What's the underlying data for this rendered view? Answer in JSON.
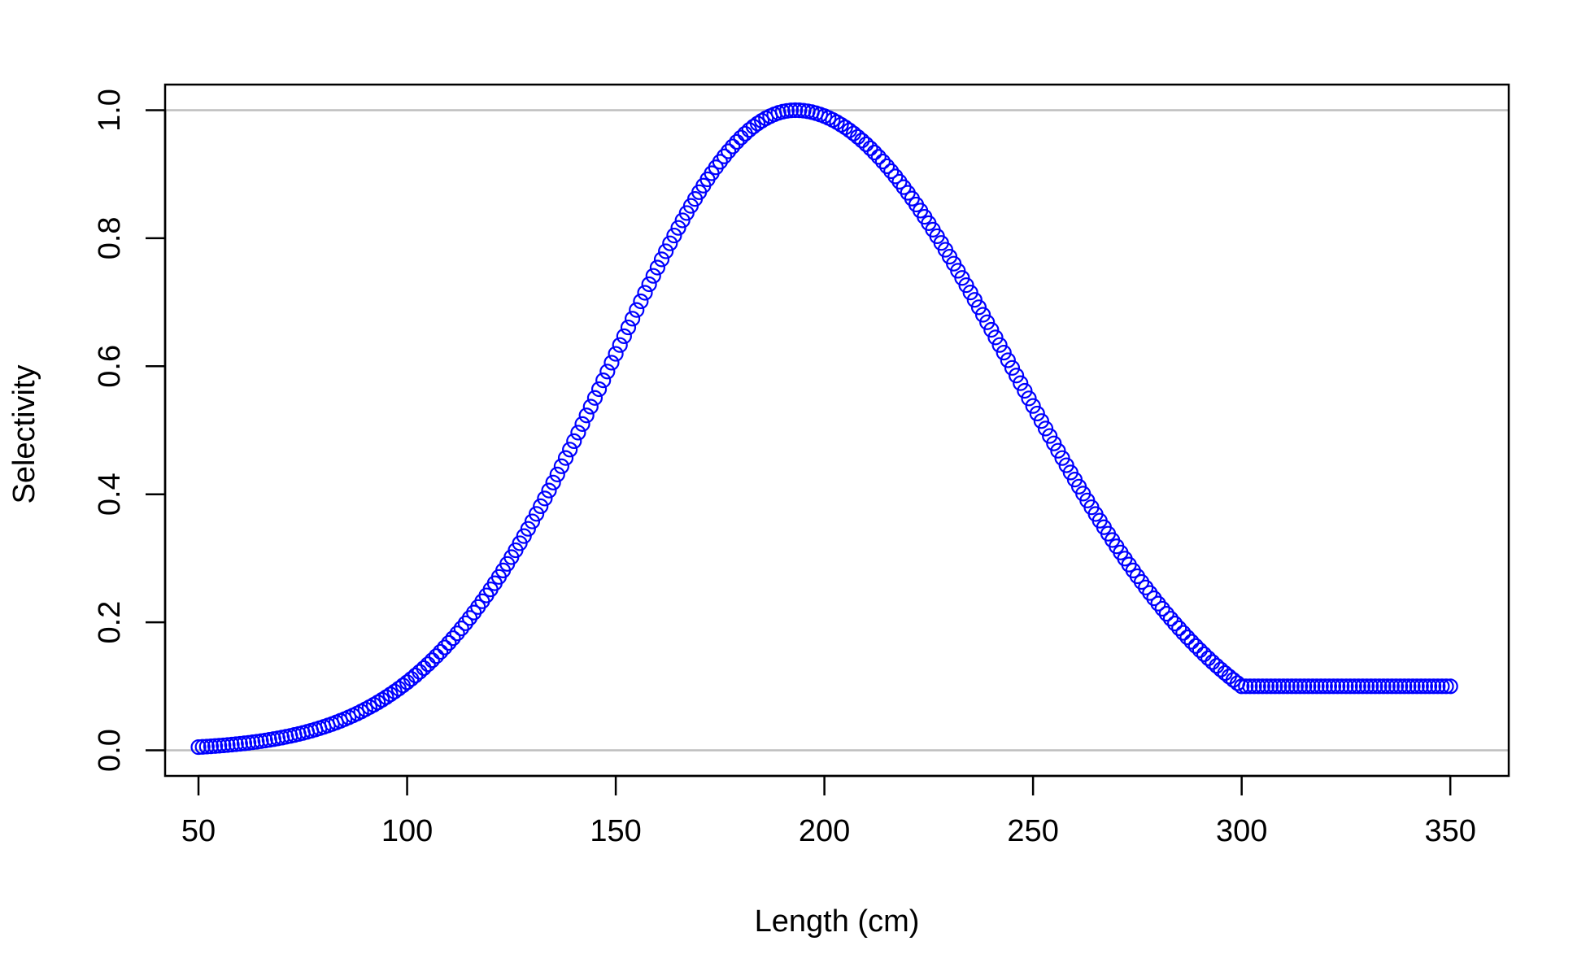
{
  "chart_data": {
    "type": "scatter",
    "title": "",
    "xlabel": "Length (cm)",
    "ylabel": "Selectivity",
    "xlim": [
      42,
      364
    ],
    "ylim": [
      -0.04,
      1.04
    ],
    "x_ticks": [
      "50",
      "100",
      "150",
      "200",
      "250",
      "300",
      "350"
    ],
    "y_ticks": [
      "0.0",
      "0.2",
      "0.4",
      "0.6",
      "0.8",
      "1.0"
    ],
    "reference_lines_y": [
      0,
      1
    ],
    "grid": false,
    "legend": "none",
    "marker": "open-circle",
    "colors": {
      "points": "#0000ff",
      "reference_lines": "#bebebe",
      "axes": "#000000"
    },
    "curve": {
      "x_range": [
        50,
        350
      ],
      "x_step": 1,
      "peak_x": 193,
      "peak_y": 1.0,
      "start_y": 0.005,
      "right_end_x": 300,
      "right_end_y": 0.1,
      "plateau_y": 0.1
    }
  }
}
